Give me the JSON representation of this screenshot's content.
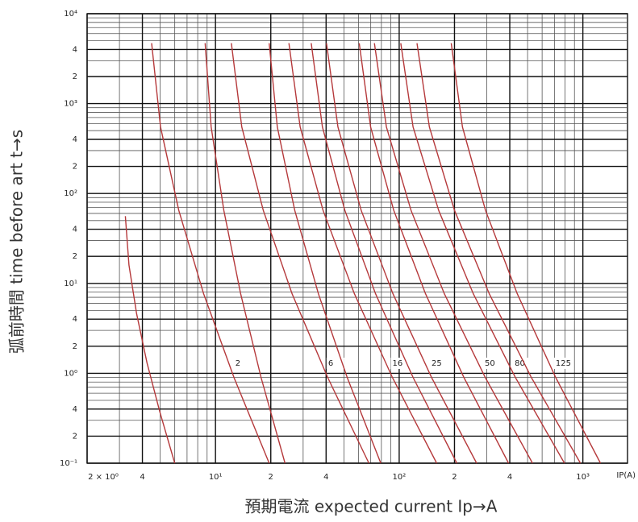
{
  "chart_data": {
    "type": "line",
    "xlabel": "預期電流 expected current Ip→A",
    "ylabel": "弧前時間 time before art t→s",
    "xunit": "IP(A)",
    "log_x": true,
    "log_y": true,
    "grid": true,
    "color": "#b5393b",
    "xlim": [
      2,
      1750
    ],
    "ylim": [
      0.1,
      10000
    ],
    "xticks": [
      {
        "value": 2,
        "label": "2 × 10⁰"
      },
      4,
      {
        "value": 10,
        "label": "10¹"
      },
      {
        "value": 20,
        "label": "2"
      },
      {
        "value": 40,
        "label": "4"
      },
      {
        "value": 100,
        "label": "10²"
      },
      {
        "value": 200,
        "label": "2"
      },
      {
        "value": 400,
        "label": "4"
      },
      {
        "value": 1000,
        "label": "10³"
      }
    ],
    "xminor": [
      3,
      5,
      6,
      7,
      8,
      9,
      30,
      50,
      60,
      70,
      80,
      90,
      300,
      500,
      600,
      700,
      800,
      900
    ],
    "yticks": [
      {
        "value": 0.1,
        "label": "10⁻¹"
      },
      {
        "value": 0.2,
        "label": "2"
      },
      {
        "value": 0.4,
        "label": "4"
      },
      {
        "value": 1,
        "label": "10⁰"
      },
      2,
      4,
      {
        "value": 10,
        "label": "10¹"
      },
      {
        "value": 20,
        "label": "2"
      },
      {
        "value": 40,
        "label": "4"
      },
      {
        "value": 100,
        "label": "10²"
      },
      {
        "value": 200,
        "label": "2"
      },
      {
        "value": 400,
        "label": "4"
      },
      {
        "value": 1000,
        "label": "10³"
      },
      {
        "value": 2000,
        "label": "2"
      },
      {
        "value": 4000,
        "label": "4"
      },
      {
        "value": 10000,
        "label": "10⁴"
      }
    ],
    "yminor": [
      0.3,
      0.5,
      0.6,
      0.7,
      0.8,
      0.9,
      3,
      5,
      6,
      7,
      8,
      9,
      30,
      50,
      60,
      70,
      80,
      90,
      300,
      500,
      600,
      700,
      800,
      900,
      3000,
      5000,
      6000,
      7000,
      8000,
      9000
    ],
    "series": [
      {
        "x": [
          3.23,
          3.38,
          3.72,
          4.24,
          4.98,
          6.0
        ],
        "values": [
          56,
          16,
          4.6,
          1.3,
          0.37,
          0.1
        ]
      },
      {
        "name": "2",
        "x": [
          4.49,
          5.02,
          6.31,
          8.61,
          12.6,
          19.6
        ],
        "values": [
          4700,
          550,
          65,
          7.7,
          0.9,
          0.1
        ]
      },
      {
        "x": [
          8.78,
          9.47,
          11.1,
          13.7,
          17.7,
          23.9
        ],
        "values": [
          4700,
          550,
          65,
          7.7,
          0.9,
          0.1
        ]
      },
      {
        "name": "6",
        "x": [
          12.2,
          13.9,
          18.2,
          26.1,
          40.8,
          68.4
        ],
        "values": [
          4700,
          550,
          65,
          7.7,
          0.9,
          0.1
        ]
      },
      {
        "x": [
          19.6,
          21.7,
          27.0,
          36.3,
          52.1,
          79.4
        ],
        "values": [
          4700,
          550,
          65,
          7.7,
          0.9,
          0.1
        ]
      },
      {
        "name": "16",
        "x": [
          25.1,
          28.9,
          38.5,
          57.0,
          91.8,
          160
        ],
        "values": [
          4700,
          550,
          65,
          7.7,
          0.9,
          0.1
        ]
      },
      {
        "x": [
          33.2,
          38.2,
          50.6,
          74.3,
          119,
          206
        ],
        "values": [
          4700,
          550,
          65,
          7.7,
          0.9,
          0.1
        ]
      },
      {
        "name": "25",
        "x": [
          40.2,
          46.4,
          62.1,
          92.4,
          150,
          264
        ],
        "values": [
          4700,
          550,
          65,
          7.7,
          0.9,
          0.1
        ]
      },
      {
        "x": [
          60.6,
          69.9,
          93.4,
          139,
          225,
          394
        ],
        "values": [
          4700,
          550,
          65,
          7.7,
          0.9,
          0.1
        ]
      },
      {
        "name": "50",
        "x": [
          73.3,
          85.2,
          116,
          176,
          294,
          532
        ],
        "values": [
          4700,
          550,
          65,
          7.7,
          0.9,
          0.1
        ]
      },
      {
        "name": "80",
        "x": [
          102,
          119,
          164,
          253,
          429,
          794
        ],
        "values": [
          4700,
          550,
          65,
          7.7,
          0.9,
          0.1
        ]
      },
      {
        "x": [
          125,
          146,
          200,
          309,
          524,
          970
        ],
        "values": [
          4700,
          550,
          65,
          7.7,
          0.9,
          0.1
        ]
      },
      {
        "name": "125",
        "x": [
          192,
          221,
          295,
          439,
          711,
          1247
        ],
        "values": [
          4700,
          550,
          65,
          7.7,
          0.9,
          0.1
        ]
      }
    ]
  }
}
